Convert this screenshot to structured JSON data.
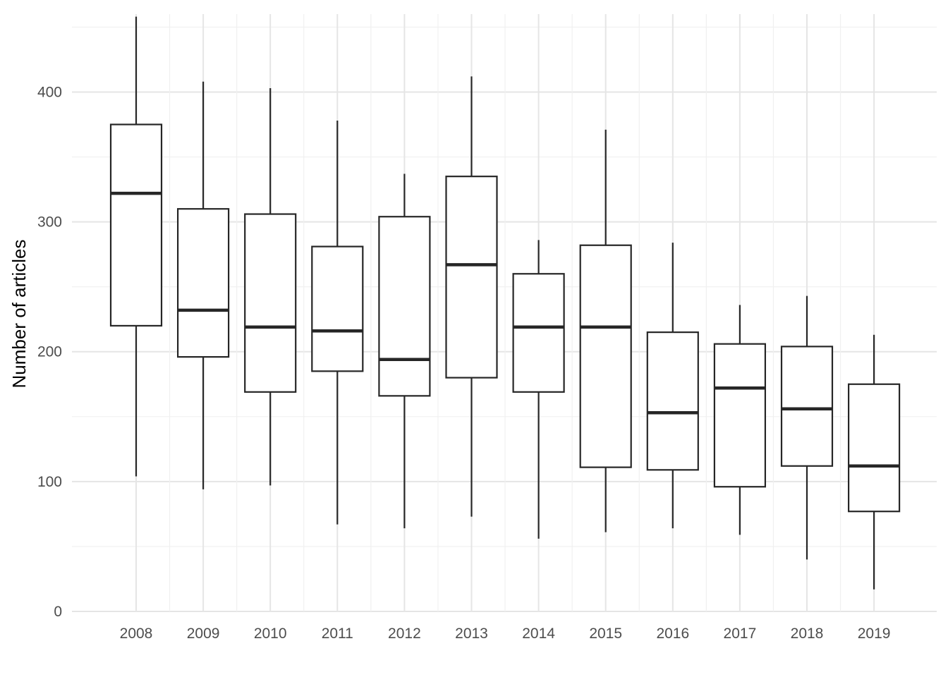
{
  "chart_data": {
    "type": "boxplot",
    "title": "",
    "xlabel": "",
    "ylabel": "Number of articles",
    "ylim": [
      0,
      460
    ],
    "yticks": [
      0,
      100,
      200,
      300,
      400
    ],
    "grid": true,
    "colors": {
      "box_stroke": "#262626",
      "grid_major": "#e5e5e5",
      "grid_minor": "#f0f0f0",
      "tick_text": "#4d4d4d"
    },
    "categories": [
      "2008",
      "2009",
      "2010",
      "2011",
      "2012",
      "2013",
      "2014",
      "2015",
      "2016",
      "2017",
      "2018",
      "2019"
    ],
    "boxes": [
      {
        "x": "2008",
        "min": 104,
        "q1": 220,
        "median": 322,
        "q3": 375,
        "max": 458
      },
      {
        "x": "2009",
        "min": 94,
        "q1": 196,
        "median": 232,
        "q3": 310,
        "max": 408
      },
      {
        "x": "2010",
        "min": 97,
        "q1": 169,
        "median": 219,
        "q3": 306,
        "max": 403
      },
      {
        "x": "2011",
        "min": 67,
        "q1": 185,
        "median": 216,
        "q3": 281,
        "max": 378
      },
      {
        "x": "2012",
        "min": 64,
        "q1": 166,
        "median": 194,
        "q3": 304,
        "max": 337
      },
      {
        "x": "2013",
        "min": 73,
        "q1": 180,
        "median": 267,
        "q3": 335,
        "max": 412
      },
      {
        "x": "2014",
        "min": 56,
        "q1": 169,
        "median": 219,
        "q3": 260,
        "max": 286
      },
      {
        "x": "2015",
        "min": 61,
        "q1": 111,
        "median": 219,
        "q3": 282,
        "max": 371
      },
      {
        "x": "2016",
        "min": 64,
        "q1": 109,
        "median": 153,
        "q3": 215,
        "max": 284
      },
      {
        "x": "2017",
        "min": 59,
        "q1": 96,
        "median": 172,
        "q3": 206,
        "max": 236
      },
      {
        "x": "2018",
        "min": 40,
        "q1": 112,
        "median": 156,
        "q3": 204,
        "max": 243
      },
      {
        "x": "2019",
        "min": 17,
        "q1": 77,
        "median": 112,
        "q3": 175,
        "max": 213
      }
    ]
  }
}
